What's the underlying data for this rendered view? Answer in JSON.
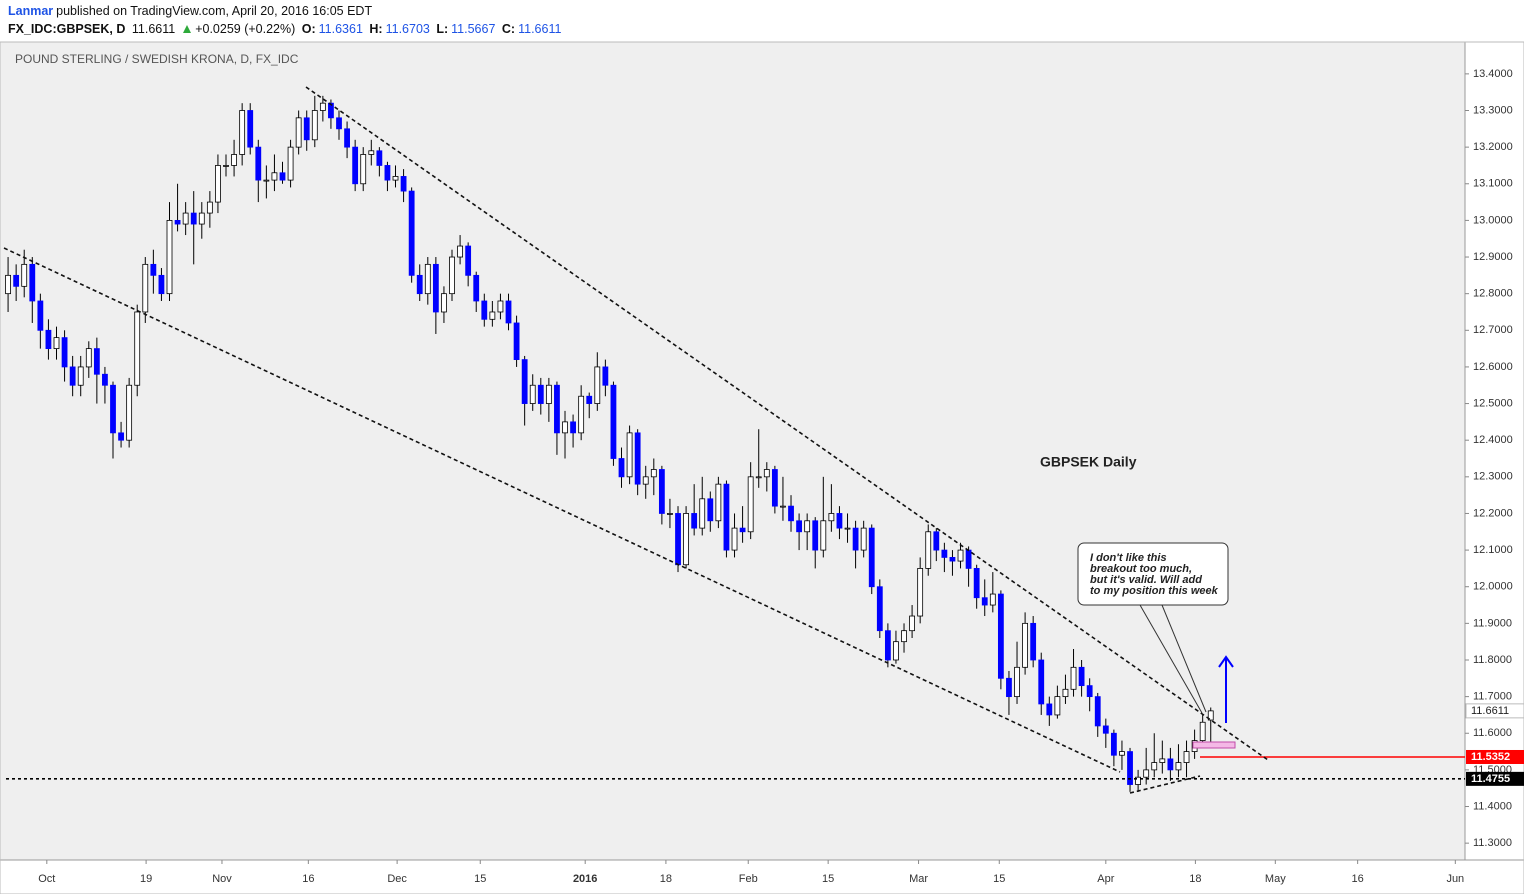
{
  "header": {
    "author": "Lanmar",
    "published": "published on TradingView.com, April 20, 2016 16:05 EDT",
    "symbol": "FX_IDC:GBPSEK, D",
    "change": "+0.0259 (+0.22%)",
    "ohlc_labels": [
      "O:",
      "H:",
      "L:",
      "C:"
    ]
  },
  "chart_data": {
    "type": "candlestick",
    "title": "POUND STERLING / SWEDISH KRONA, D, FX_IDC",
    "annotations": {
      "label": "GBPSEK Daily",
      "callout": [
        "I don't like this",
        "breakout too much,",
        "but it's valid. Will add",
        "to my position this week"
      ]
    },
    "up_color": "#ffffff",
    "down_color": "#0000ff",
    "outline_color": "#000000",
    "open": [
      12.8,
      12.85,
      12.82,
      12.88,
      12.78,
      12.7,
      12.65,
      12.68,
      12.6,
      12.55,
      12.6,
      12.65,
      12.58,
      12.55,
      12.42,
      12.4,
      12.55,
      12.75,
      12.88,
      12.85,
      12.8,
      13.0,
      12.99,
      13.02,
      12.99,
      13.02,
      13.05,
      13.15,
      13.15,
      13.18,
      13.3,
      13.2,
      13.11,
      13.11,
      13.13,
      13.11,
      13.2,
      13.28,
      13.22,
      13.3,
      13.32,
      13.28,
      13.25,
      13.2,
      13.1,
      13.18,
      13.19,
      13.15,
      13.11,
      13.12,
      13.08,
      12.85,
      12.8,
      12.88,
      12.75,
      12.8,
      12.9,
      12.93,
      12.85,
      12.78,
      12.73,
      12.75,
      12.78,
      12.72,
      12.62,
      12.5,
      12.55,
      12.5,
      12.55,
      12.42,
      12.45,
      12.42,
      12.52,
      12.5,
      12.6,
      12.55,
      12.35,
      12.3,
      12.42,
      12.28,
      12.3,
      12.32,
      12.2,
      12.2,
      12.06,
      12.2,
      12.16,
      12.24,
      12.18,
      12.28,
      12.1,
      12.16,
      12.15,
      12.3,
      12.3,
      12.32,
      12.22,
      12.22,
      12.18,
      12.15,
      12.18,
      12.1,
      12.18,
      12.2,
      12.16,
      12.16,
      12.1,
      12.16,
      12.0,
      11.88,
      11.8,
      11.85,
      11.88,
      11.92,
      12.05,
      12.15,
      12.1,
      12.08,
      12.07,
      12.1,
      12.05,
      11.97,
      11.95,
      11.98,
      11.75,
      11.7,
      11.78,
      11.9,
      11.8,
      11.68,
      11.65,
      11.7,
      11.72,
      11.78,
      11.73,
      11.7,
      11.62,
      11.6,
      11.54,
      11.55,
      11.46,
      11.48,
      11.5,
      11.52,
      11.53,
      11.5,
      11.52,
      11.55,
      11.58,
      11.6361
    ],
    "high": [
      12.9,
      12.88,
      12.92,
      12.9,
      12.8,
      12.73,
      12.71,
      12.7,
      12.63,
      12.63,
      12.67,
      12.68,
      12.6,
      12.56,
      12.45,
      12.57,
      12.77,
      12.9,
      12.92,
      12.87,
      13.05,
      13.1,
      13.05,
      13.08,
      13.05,
      13.08,
      13.18,
      13.18,
      13.22,
      13.32,
      13.32,
      13.22,
      13.15,
      13.18,
      13.16,
      13.22,
      13.3,
      13.3,
      13.34,
      13.34,
      13.33,
      13.3,
      13.27,
      13.22,
      13.2,
      13.22,
      13.2,
      13.16,
      13.15,
      13.14,
      13.09,
      12.88,
      12.9,
      12.9,
      12.82,
      12.92,
      12.96,
      12.94,
      12.86,
      12.8,
      12.78,
      12.8,
      12.8,
      12.74,
      12.63,
      12.58,
      12.57,
      12.57,
      12.56,
      12.48,
      12.47,
      12.55,
      12.53,
      12.64,
      12.62,
      12.56,
      12.38,
      12.44,
      12.43,
      12.33,
      12.35,
      12.33,
      12.24,
      12.22,
      12.22,
      12.28,
      12.3,
      12.26,
      12.3,
      12.29,
      12.2,
      12.22,
      12.34,
      12.43,
      12.34,
      12.33,
      12.3,
      12.25,
      12.2,
      12.2,
      12.19,
      12.3,
      12.28,
      12.22,
      12.2,
      12.18,
      12.18,
      12.17,
      12.02,
      11.9,
      11.88,
      11.9,
      11.95,
      12.08,
      12.17,
      12.16,
      12.12,
      12.1,
      12.12,
      12.11,
      12.06,
      12.02,
      12.04,
      11.99,
      11.77,
      11.85,
      11.93,
      11.92,
      11.82,
      11.7,
      11.73,
      11.76,
      11.83,
      11.8,
      11.75,
      11.71,
      11.64,
      11.61,
      11.58,
      11.56,
      11.5,
      11.56,
      11.6,
      11.58,
      11.56,
      11.57,
      11.58,
      11.61,
      11.65,
      11.6703
    ],
    "low": [
      12.75,
      12.78,
      12.79,
      12.72,
      12.65,
      12.62,
      12.62,
      12.56,
      12.52,
      12.52,
      12.57,
      12.5,
      12.5,
      12.35,
      12.38,
      12.38,
      12.52,
      12.72,
      12.8,
      12.78,
      12.78,
      12.97,
      12.96,
      12.88,
      12.95,
      12.98,
      13.02,
      13.12,
      13.12,
      13.15,
      13.18,
      13.05,
      13.06,
      13.08,
      13.1,
      13.09,
      13.18,
      13.19,
      13.2,
      13.27,
      13.25,
      13.22,
      13.17,
      13.08,
      13.08,
      13.15,
      13.12,
      13.08,
      13.09,
      13.05,
      12.83,
      12.78,
      12.77,
      12.69,
      12.72,
      12.78,
      12.88,
      12.82,
      12.75,
      12.71,
      12.71,
      12.73,
      12.7,
      12.6,
      12.44,
      12.48,
      12.47,
      12.45,
      12.36,
      12.35,
      12.38,
      12.4,
      12.46,
      12.48,
      12.52,
      12.33,
      12.27,
      12.28,
      12.25,
      12.24,
      12.25,
      12.17,
      12.16,
      12.04,
      12.05,
      12.14,
      12.14,
      12.15,
      12.16,
      12.08,
      12.08,
      12.12,
      12.13,
      12.27,
      12.26,
      12.2,
      12.18,
      12.15,
      12.1,
      12.1,
      12.05,
      12.08,
      12.15,
      12.13,
      12.12,
      12.05,
      12.08,
      11.98,
      11.86,
      11.78,
      11.79,
      11.82,
      11.86,
      11.9,
      12.03,
      12.07,
      12.04,
      12.03,
      12.05,
      12.0,
      11.94,
      11.92,
      11.93,
      11.72,
      11.65,
      11.68,
      11.76,
      11.78,
      11.65,
      11.62,
      11.64,
      11.68,
      11.7,
      11.7,
      11.66,
      11.59,
      11.56,
      11.51,
      11.5,
      11.44,
      11.44,
      11.46,
      11.48,
      11.49,
      11.47,
      11.48,
      11.48,
      11.53,
      11.56,
      11.5667
    ],
    "close": [
      12.85,
      12.82,
      12.88,
      12.78,
      12.7,
      12.65,
      12.68,
      12.6,
      12.55,
      12.6,
      12.65,
      12.58,
      12.55,
      12.42,
      12.4,
      12.55,
      12.75,
      12.88,
      12.85,
      12.8,
      13.0,
      12.99,
      13.02,
      12.99,
      13.02,
      13.05,
      13.15,
      13.15,
      13.18,
      13.3,
      13.2,
      13.11,
      13.11,
      13.13,
      13.11,
      13.2,
      13.28,
      13.22,
      13.3,
      13.32,
      13.28,
      13.25,
      13.2,
      13.1,
      13.18,
      13.19,
      13.15,
      13.11,
      13.12,
      13.08,
      12.85,
      12.8,
      12.88,
      12.75,
      12.8,
      12.9,
      12.93,
      12.85,
      12.78,
      12.73,
      12.75,
      12.78,
      12.72,
      12.62,
      12.5,
      12.55,
      12.5,
      12.55,
      12.42,
      12.45,
      12.42,
      12.52,
      12.5,
      12.6,
      12.55,
      12.35,
      12.3,
      12.42,
      12.28,
      12.3,
      12.32,
      12.2,
      12.2,
      12.06,
      12.2,
      12.16,
      12.24,
      12.18,
      12.28,
      12.1,
      12.16,
      12.15,
      12.3,
      12.3,
      12.32,
      12.22,
      12.22,
      12.18,
      12.15,
      12.18,
      12.1,
      12.18,
      12.2,
      12.16,
      12.16,
      12.1,
      12.16,
      12.0,
      11.88,
      11.8,
      11.85,
      11.88,
      11.92,
      12.05,
      12.15,
      12.1,
      12.08,
      12.07,
      12.1,
      12.05,
      11.97,
      11.95,
      11.98,
      11.75,
      11.7,
      11.78,
      11.9,
      11.8,
      11.68,
      11.65,
      11.7,
      11.72,
      11.78,
      11.73,
      11.7,
      11.62,
      11.6,
      11.54,
      11.55,
      11.46,
      11.48,
      11.5,
      11.52,
      11.53,
      11.5,
      11.52,
      11.55,
      11.58,
      11.63,
      11.6611
    ],
    "xlim": [
      -1,
      180.5
    ],
    "xticks": [
      {
        "value": 4.8,
        "label": "Oct"
      },
      {
        "value": 17.1,
        "label": "19"
      },
      {
        "value": 26.5,
        "label": "Nov"
      },
      {
        "value": 37.2,
        "label": "16"
      },
      {
        "value": 48.2,
        "label": "Dec"
      },
      {
        "value": 58.5,
        "label": "15"
      },
      {
        "value": 71.5,
        "label": "2016"
      },
      {
        "value": 81.5,
        "label": "18"
      },
      {
        "value": 91.7,
        "label": "Feb"
      },
      {
        "value": 101.6,
        "label": "15"
      },
      {
        "value": 112.8,
        "label": "Mar"
      },
      {
        "value": 122.8,
        "label": "15"
      },
      {
        "value": 136.0,
        "label": "Apr"
      },
      {
        "value": 147.1,
        "label": "18"
      },
      {
        "value": 157.0,
        "label": "May"
      },
      {
        "value": 167.2,
        "label": "16"
      },
      {
        "value": 179.3,
        "label": "Jun"
      }
    ],
    "ylim": [
      11.254,
      13.487
    ],
    "yticks": [
      {
        "value": 13.4,
        "label": "13.4000"
      },
      {
        "value": 13.3,
        "label": "13.3000"
      },
      {
        "value": 13.2,
        "label": "13.2000"
      },
      {
        "value": 13.1,
        "label": "13.1000"
      },
      {
        "value": 13.0,
        "label": "13.0000"
      },
      {
        "value": 12.9,
        "label": "12.9000"
      },
      {
        "value": 12.8,
        "label": "12.8000"
      },
      {
        "value": 12.7,
        "label": "12.7000"
      },
      {
        "value": 12.6,
        "label": "12.6000"
      },
      {
        "value": 12.5,
        "label": "12.5000"
      },
      {
        "value": 12.4,
        "label": "12.4000"
      },
      {
        "value": 12.3,
        "label": "12.3000"
      },
      {
        "value": 12.2,
        "label": "12.2000"
      },
      {
        "value": 12.1,
        "label": "12.1000"
      },
      {
        "value": 12.0,
        "label": "12.0000"
      },
      {
        "value": 11.9,
        "label": "11.9000"
      },
      {
        "value": 11.8,
        "label": "11.8000"
      },
      {
        "value": 11.7,
        "label": "11.7000"
      },
      {
        "value": 11.6,
        "label": "11.6000"
      },
      {
        "value": 11.5,
        "label": "11.5000"
      },
      {
        "value": 11.4,
        "label": "11.4000"
      },
      {
        "value": 11.3,
        "label": "11.3000"
      }
    ],
    "levels": [
      {
        "value": 11.5352,
        "color": "#ff0000",
        "style": "solid"
      },
      {
        "value": 11.4755,
        "color": "#000000",
        "style": "dotted"
      }
    ],
    "grid": false
  }
}
